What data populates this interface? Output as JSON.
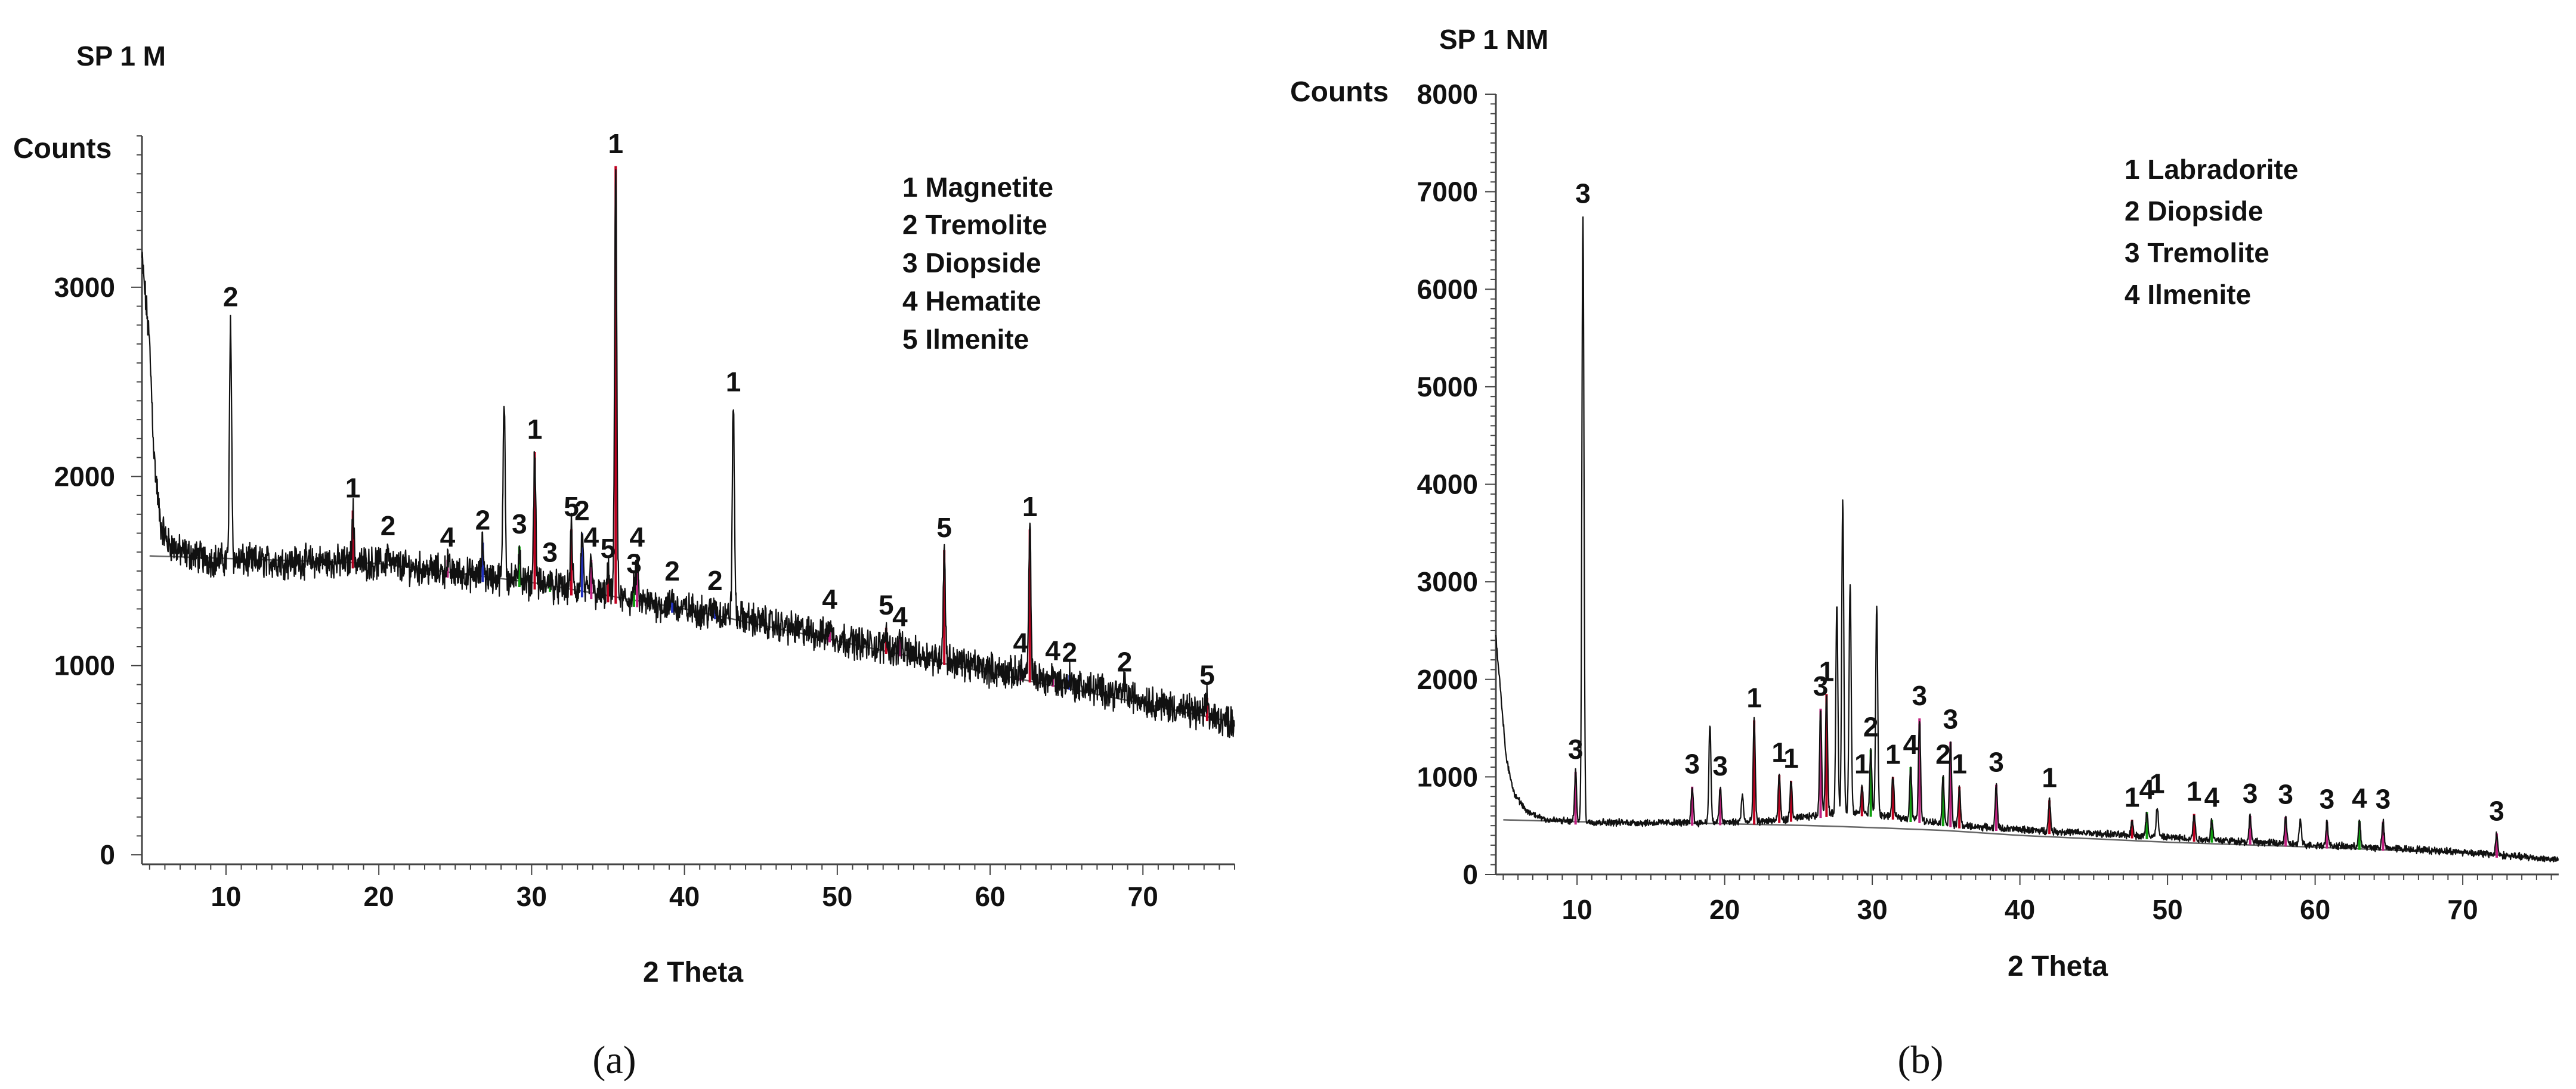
{
  "chart_data": [
    {
      "type": "line",
      "panel": "(a)",
      "title": "SP 1 M",
      "xlabel": "2 Theta",
      "ylabel": "Counts",
      "xlim": [
        4.5,
        76
      ],
      "ylim": [
        -50,
        3800
      ],
      "x_ticks": [
        10,
        20,
        30,
        40,
        50,
        60,
        70
      ],
      "y_ticks": [
        0,
        1000,
        2000,
        3000
      ],
      "grid": false,
      "legend": {
        "placement": "top-right",
        "entries": [
          "1 Magnetite",
          "2 Tremolite",
          "3 Diopside",
          "4 Hematite",
          "5 Ilmenite"
        ]
      },
      "background_curve": [
        [
          5.0,
          1580
        ],
        [
          20,
          1540
        ],
        [
          30,
          1440
        ],
        [
          40,
          1300
        ],
        [
          50,
          1130
        ],
        [
          60,
          960
        ],
        [
          70,
          800
        ],
        [
          76,
          700
        ]
      ],
      "baseline_points": [
        [
          4.5,
          3150
        ],
        [
          5.0,
          2700
        ],
        [
          5.3,
          2100
        ],
        [
          5.7,
          1750
        ],
        [
          6.2,
          1650
        ],
        [
          7,
          1600
        ],
        [
          9,
          1560
        ],
        [
          12,
          1550
        ],
        [
          16,
          1550
        ],
        [
          20,
          1540
        ],
        [
          24,
          1500
        ],
        [
          28,
          1460
        ],
        [
          32,
          1410
        ],
        [
          36,
          1350
        ],
        [
          40,
          1300
        ],
        [
          44,
          1250
        ],
        [
          48,
          1180
        ],
        [
          52,
          1110
        ],
        [
          56,
          1050
        ],
        [
          60,
          980
        ],
        [
          64,
          920
        ],
        [
          68,
          860
        ],
        [
          72,
          780
        ],
        [
          76,
          700
        ]
      ],
      "peaks": [
        {
          "x": 10.3,
          "y": 2830,
          "label": "2",
          "color": "#000000"
        },
        {
          "x": 18.3,
          "y": 1820,
          "label": "1",
          "color": "#b00020"
        },
        {
          "x": 20.6,
          "y": 1620,
          "label": "2",
          "color": "#000000"
        },
        {
          "x": 24.5,
          "y": 1560,
          "label": "4",
          "color": "#c02080"
        },
        {
          "x": 26.8,
          "y": 1650,
          "label": "2",
          "color": "#2030c0"
        },
        {
          "x": 28.2,
          "y": 2420,
          "label": "",
          "color": "#000000"
        },
        {
          "x": 29.2,
          "y": 1630,
          "label": "3",
          "color": "#10a010"
        },
        {
          "x": 30.2,
          "y": 2130,
          "label": "1",
          "color": "#c00020"
        },
        {
          "x": 31.2,
          "y": 1480,
          "label": "3",
          "color": "#10a010"
        },
        {
          "x": 32.6,
          "y": 1720,
          "label": "5",
          "color": "#c00020"
        },
        {
          "x": 33.3,
          "y": 1700,
          "label": "2",
          "color": "#2030c0"
        },
        {
          "x": 33.9,
          "y": 1560,
          "label": "4",
          "color": "#c02080"
        },
        {
          "x": 35.5,
          "y": 3640,
          "label": "1",
          "color": "#c00020"
        },
        {
          "x": 35.0,
          "y": 1500,
          "label": "5",
          "color": "#c00020"
        },
        {
          "x": 36.9,
          "y": 1560,
          "label": "4",
          "color": "#c02080"
        },
        {
          "x": 36.7,
          "y": 1420,
          "label": "3",
          "color": "#10a010"
        },
        {
          "x": 39.2,
          "y": 1380,
          "label": "2",
          "color": "#2030c0"
        },
        {
          "x": 42.0,
          "y": 1330,
          "label": "2",
          "color": "#2030c0"
        },
        {
          "x": 43.2,
          "y": 2380,
          "label": "1",
          "color": "#000000"
        },
        {
          "x": 49.5,
          "y": 1230,
          "label": "4",
          "color": "#c02080"
        },
        {
          "x": 53.2,
          "y": 1200,
          "label": "5",
          "color": "#c00020"
        },
        {
          "x": 54.1,
          "y": 1140,
          "label": "4",
          "color": "#c02080"
        },
        {
          "x": 57.0,
          "y": 1610,
          "label": "5",
          "color": "#c00020"
        },
        {
          "x": 62.0,
          "y": 1000,
          "label": "4",
          "color": "#c02080"
        },
        {
          "x": 62.6,
          "y": 1720,
          "label": "1",
          "color": "#c00020"
        },
        {
          "x": 64.1,
          "y": 960,
          "label": "4",
          "color": "#c02080"
        },
        {
          "x": 65.2,
          "y": 950,
          "label": "2",
          "color": "#2030c0"
        },
        {
          "x": 68.8,
          "y": 900,
          "label": "2",
          "color": "#000000"
        },
        {
          "x": 74.2,
          "y": 830,
          "label": "5",
          "color": "#c00020"
        }
      ]
    },
    {
      "type": "line",
      "panel": "(b)",
      "title": "SP 1 NM",
      "xlabel": "2 Theta",
      "ylabel": "Counts",
      "xlim": [
        4.5,
        76.5
      ],
      "ylim": [
        0,
        8000
      ],
      "x_ticks": [
        10,
        20,
        30,
        40,
        50,
        60,
        70
      ],
      "y_ticks": [
        0,
        1000,
        2000,
        3000,
        4000,
        5000,
        6000,
        7000,
        8000
      ],
      "grid": false,
      "legend": {
        "placement": "top-right",
        "entries": [
          "1 Labradorite",
          "2 Diopside",
          "3 Tremolite",
          "4 Ilmenite"
        ]
      },
      "background_curve": [
        [
          5.0,
          560
        ],
        [
          10,
          540
        ],
        [
          20,
          520
        ],
        [
          26,
          500
        ],
        [
          30,
          480
        ],
        [
          35,
          450
        ],
        [
          40,
          400
        ],
        [
          50,
          330
        ],
        [
          60,
          280
        ],
        [
          70,
          220
        ],
        [
          76.5,
          160
        ]
      ],
      "baseline_points": [
        [
          4.5,
          2450
        ],
        [
          4.8,
          1900
        ],
        [
          5.2,
          1200
        ],
        [
          5.7,
          850
        ],
        [
          6.5,
          650
        ],
        [
          8,
          560
        ],
        [
          10,
          540
        ],
        [
          14,
          530
        ],
        [
          18,
          530
        ],
        [
          22,
          540
        ],
        [
          24,
          560
        ],
        [
          26,
          600
        ],
        [
          28,
          640
        ],
        [
          30,
          620
        ],
        [
          32,
          580
        ],
        [
          34,
          540
        ],
        [
          36,
          500
        ],
        [
          40,
          460
        ],
        [
          45,
          420
        ],
        [
          50,
          380
        ],
        [
          55,
          340
        ],
        [
          60,
          300
        ],
        [
          65,
          270
        ],
        [
          70,
          230
        ],
        [
          76.5,
          150
        ]
      ],
      "peaks": [
        {
          "x": 10.4,
          "y": 6750,
          "label": "3",
          "color": "#000000"
        },
        {
          "x": 9.9,
          "y": 1050,
          "label": "3",
          "color": "#c02080"
        },
        {
          "x": 17.8,
          "y": 900,
          "label": "3",
          "color": "#c02080"
        },
        {
          "x": 19.0,
          "y": 1520,
          "label": "",
          "color": "#000000"
        },
        {
          "x": 19.7,
          "y": 880,
          "label": "3",
          "color": "#c02080"
        },
        {
          "x": 21.2,
          "y": 820,
          "label": "",
          "color": "#000000"
        },
        {
          "x": 22.0,
          "y": 1580,
          "label": "1",
          "color": "#c00020"
        },
        {
          "x": 23.7,
          "y": 1020,
          "label": "1",
          "color": "#c00020"
        },
        {
          "x": 24.5,
          "y": 960,
          "label": "1",
          "color": "#c00020"
        },
        {
          "x": 26.5,
          "y": 1700,
          "label": "3",
          "color": "#c02080"
        },
        {
          "x": 26.9,
          "y": 1850,
          "label": "1",
          "color": "#c00020"
        },
        {
          "x": 27.6,
          "y": 2750,
          "label": "",
          "color": "#000000"
        },
        {
          "x": 28.0,
          "y": 3840,
          "label": "",
          "color": "#000000"
        },
        {
          "x": 28.5,
          "y": 2980,
          "label": "",
          "color": "#000000"
        },
        {
          "x": 29.3,
          "y": 900,
          "label": "1",
          "color": "#c00020"
        },
        {
          "x": 29.9,
          "y": 1280,
          "label": "2",
          "color": "#10a010"
        },
        {
          "x": 30.3,
          "y": 2760,
          "label": "",
          "color": "#000000"
        },
        {
          "x": 31.4,
          "y": 1000,
          "label": "1",
          "color": "#c00020"
        },
        {
          "x": 32.6,
          "y": 1100,
          "label": "4",
          "color": "#10a010"
        },
        {
          "x": 33.2,
          "y": 1600,
          "label": "3",
          "color": "#c02080"
        },
        {
          "x": 34.8,
          "y": 1000,
          "label": "2",
          "color": "#10a010"
        },
        {
          "x": 35.3,
          "y": 1360,
          "label": "3",
          "color": "#c02080"
        },
        {
          "x": 35.9,
          "y": 900,
          "label": "1",
          "color": "#c00020"
        },
        {
          "x": 38.4,
          "y": 920,
          "label": "3",
          "color": "#c02080"
        },
        {
          "x": 42.0,
          "y": 760,
          "label": "1",
          "color": "#c00020"
        },
        {
          "x": 47.6,
          "y": 560,
          "label": "1",
          "color": "#c00020"
        },
        {
          "x": 48.6,
          "y": 640,
          "label": "4",
          "color": "#10a010"
        },
        {
          "x": 49.3,
          "y": 700,
          "label": "1",
          "color": "#000000"
        },
        {
          "x": 51.8,
          "y": 620,
          "label": "1",
          "color": "#c00020"
        },
        {
          "x": 53.0,
          "y": 560,
          "label": "4",
          "color": "#10a010"
        },
        {
          "x": 55.6,
          "y": 600,
          "label": "3",
          "color": "#c02080"
        },
        {
          "x": 58.0,
          "y": 590,
          "label": "3",
          "color": "#c02080"
        },
        {
          "x": 59.0,
          "y": 560,
          "label": "",
          "color": "#000000"
        },
        {
          "x": 60.8,
          "y": 540,
          "label": "3",
          "color": "#c02080"
        },
        {
          "x": 63.0,
          "y": 550,
          "label": "4",
          "color": "#10a010"
        },
        {
          "x": 64.6,
          "y": 540,
          "label": "3",
          "color": "#c02080"
        },
        {
          "x": 72.3,
          "y": 420,
          "label": "3",
          "color": "#c02080"
        }
      ]
    }
  ],
  "captions": {
    "a": "(a)",
    "b": "(b)"
  }
}
